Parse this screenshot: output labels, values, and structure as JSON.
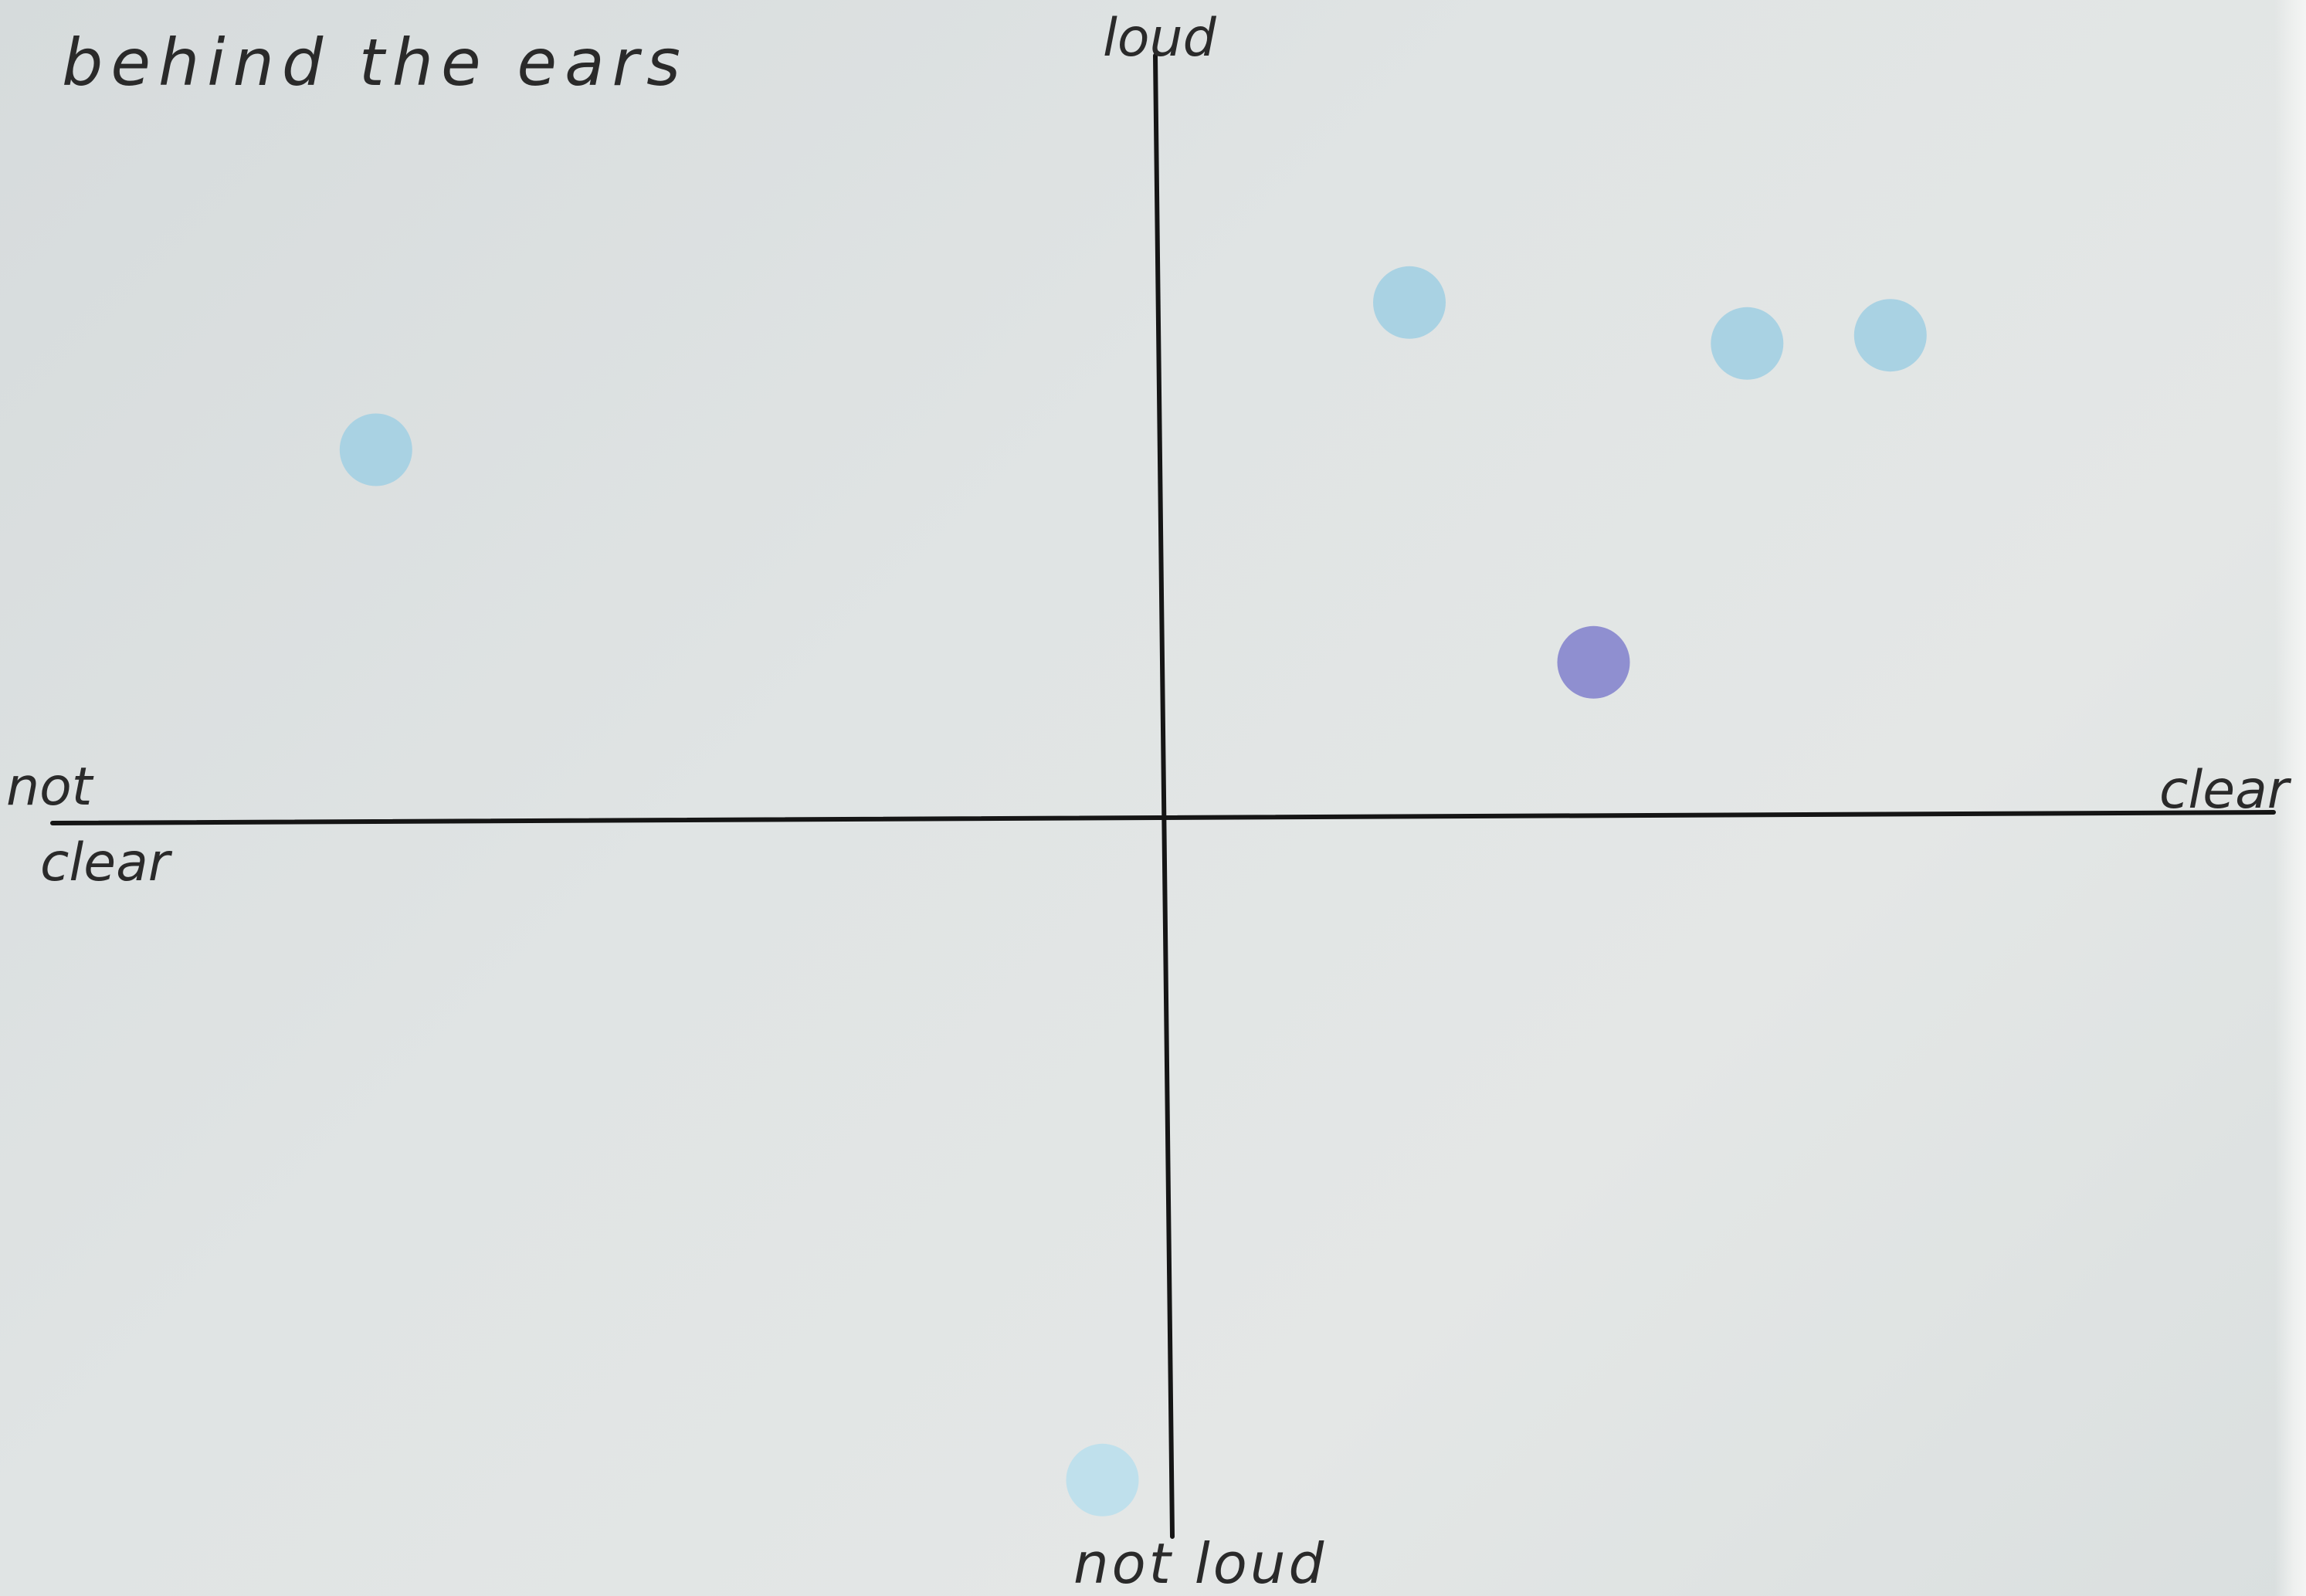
{
  "chart_data": {
    "type": "scatter",
    "title": "behind the ears",
    "x_axis": {
      "negative_label": [
        "not",
        "clear"
      ],
      "positive_label": "clear",
      "range": [
        -1,
        1
      ]
    },
    "y_axis": {
      "negative_label": "not loud",
      "positive_label": "loud",
      "range": [
        -1,
        1
      ]
    },
    "grid": false,
    "points": [
      {
        "x": -0.77,
        "y": 0.45,
        "color": "#a9d2e3"
      },
      {
        "x": 0.24,
        "y": 0.63,
        "color": "#a9d2e3"
      },
      {
        "x": 0.57,
        "y": 0.58,
        "color": "#a9d2e3"
      },
      {
        "x": 0.71,
        "y": 0.59,
        "color": "#a9d2e3"
      },
      {
        "x": 0.42,
        "y": 0.19,
        "color": "#8f8fd0"
      },
      {
        "x": -0.06,
        "y": -0.81,
        "color": "#bfe0ec"
      }
    ],
    "colors": {
      "axis": "#151515",
      "dot_blue": "#a9d2e3",
      "dot_purple": "#8f8fd0"
    }
  }
}
